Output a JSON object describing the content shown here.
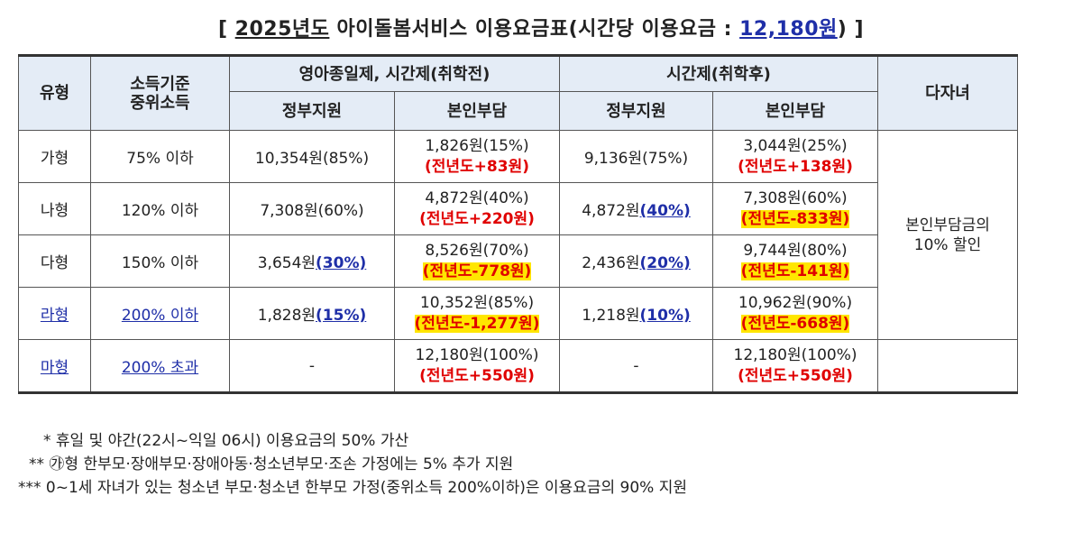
{
  "title": {
    "open": "[ ",
    "year": "2025년도",
    "text": " 아이돌봄서비스 이용요금표(시간당 이용요금 : ",
    "price": "12,180원",
    "close": ") ]"
  },
  "header": {
    "type": "유형",
    "income": "소득기준\n중위소득",
    "group1": "영아종일제, 시간제(취학전)",
    "group2": "시간제(취학후)",
    "multi": "다자녀",
    "gov": "정부지원",
    "self": "본인부담"
  },
  "rows": [
    {
      "type": "가형",
      "income": "75% 이하",
      "g1_gov_amt": "10,354원(85%)",
      "g1_gov_pct": "",
      "g1_self_amt": "1,826원(15%)",
      "g1_delta": "(전년도+83원)",
      "g2_gov_amt": "9,136원(75%)",
      "g2_gov_pct": "",
      "g2_self_amt": "3,044원(25%)",
      "g2_delta": "(전년도+138원)"
    },
    {
      "type": "나형",
      "income": "120% 이하",
      "g1_gov_amt": "7,308원(60%)",
      "g1_gov_pct": "",
      "g1_self_amt": "4,872원(40%)",
      "g1_delta": "(전년도+220원)",
      "g2_gov_amt": "4,872원",
      "g2_gov_pct": "(40%)",
      "g2_self_amt": "7,308원(60%)",
      "g2_delta": "(전년도-833원)"
    },
    {
      "type": "다형",
      "income": "150% 이하",
      "g1_gov_amt": "3,654원",
      "g1_gov_pct": "(30%)",
      "g1_self_amt": "8,526원(70%)",
      "g1_delta": "(전년도-778원)",
      "g2_gov_amt": "2,436원",
      "g2_gov_pct": "(20%)",
      "g2_self_amt": "9,744원(80%)",
      "g2_delta": "(전년도-141원)"
    },
    {
      "type": "라형",
      "income": "200% 이하",
      "g1_gov_amt": "1,828원",
      "g1_gov_pct": "(15%)",
      "g1_self_amt": "10,352원(85%)",
      "g1_delta": "(전년도-1,277원)",
      "g2_gov_amt": "1,218원",
      "g2_gov_pct": "(10%)",
      "g2_self_amt": "10,962원(90%)",
      "g2_delta": "(전년도-668원)"
    },
    {
      "type": "마형",
      "income": "200% 초과",
      "g1_gov_amt": "-",
      "g1_gov_pct": "",
      "g1_self_amt": "12,180원(100%)",
      "g1_delta": "(전년도+550원)",
      "g2_gov_amt": "-",
      "g2_gov_pct": "",
      "g2_self_amt": "12,180원(100%)",
      "g2_delta": "(전년도+550원)"
    }
  ],
  "multi_value": "본인부담금의\n10% 할인",
  "notes": [
    "* 휴일 및 야간(22시~익일 06시) 이용요금의 50% 가산",
    "** ㉮형 한부모·장애부모·장애아동·청소년부모·조손 가정에는 5% 추가 지원",
    "*** 0~1세 자녀가 있는 청소년 부모·청소년 한부모 가정(중위소득 200%이하)은 이용요금의 90% 지원"
  ],
  "colors": {
    "header_bg": "#e4ecf6",
    "delta_red": "#e00000",
    "highlight": "#ffe600",
    "link_blue": "#1f2fa8"
  }
}
